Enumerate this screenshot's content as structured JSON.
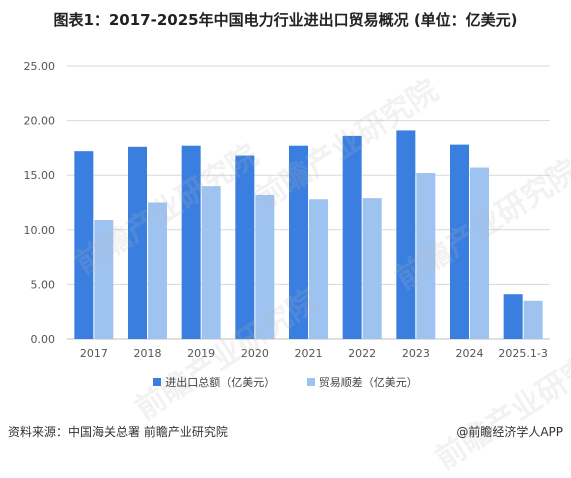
{
  "title": "图表1：2017-2025年中国电力行业进出口贸易概况 (单位：亿美元)",
  "watermark": "前瞻产业研究院",
  "footer": {
    "source": "资料来源：中国海关总署 前瞻产业研究院",
    "brand": "@前瞻经济学人APP"
  },
  "colors": {
    "series1": "#3a7fe0",
    "series2": "#9fc3f1",
    "grid": "#d9d9d9",
    "axis": "#bfbfbf"
  },
  "chart_data": {
    "type": "bar",
    "title": "图表1：2017-2025年中国电力行业进出口贸易概况 (单位：亿美元)",
    "categories": [
      "2017",
      "2018",
      "2019",
      "2020",
      "2021",
      "2022",
      "2023",
      "2024",
      "2025.1-3"
    ],
    "series": [
      {
        "name": "进出口总额（亿美元）",
        "values": [
          17.2,
          17.6,
          17.7,
          16.8,
          17.7,
          18.6,
          19.1,
          17.8,
          4.1
        ]
      },
      {
        "name": "贸易顺差（亿美元）",
        "values": [
          10.9,
          12.5,
          14.0,
          13.2,
          12.8,
          12.9,
          15.2,
          15.7,
          3.5
        ]
      }
    ],
    "ylim": [
      0,
      25
    ],
    "yticks": [
      "0.00",
      "5.00",
      "10.00",
      "15.00",
      "20.00",
      "25.00"
    ],
    "grid": true,
    "legend": "bottom",
    "xlabel": "",
    "ylabel": ""
  }
}
